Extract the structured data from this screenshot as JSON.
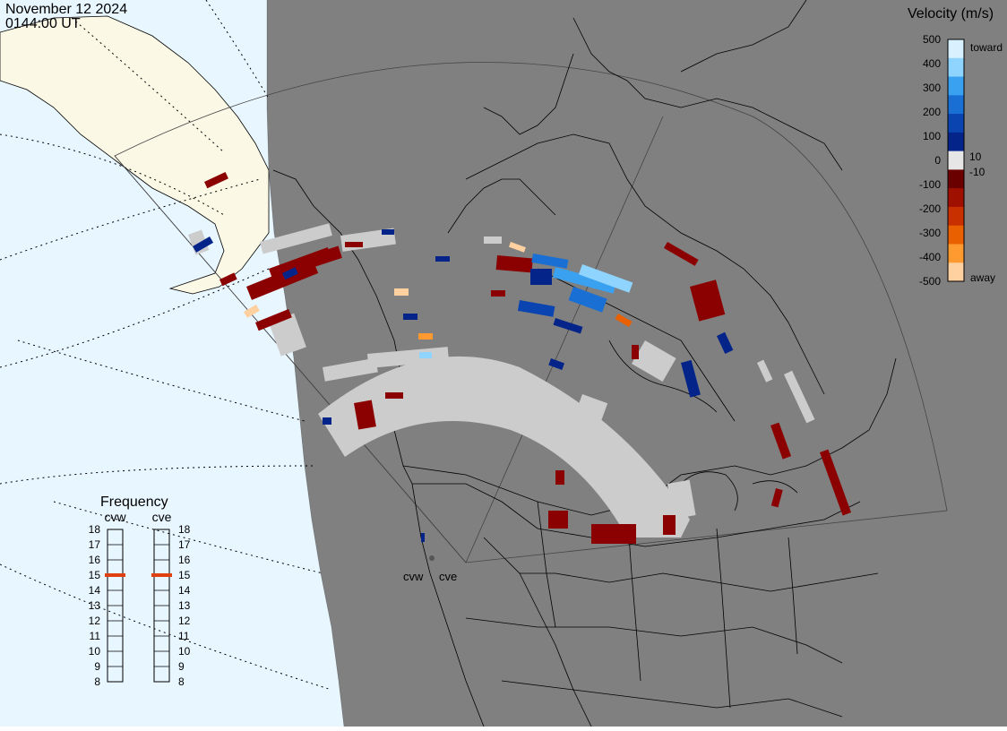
{
  "header": {
    "date": "November 12 2024",
    "time": "0144:00 UT"
  },
  "velocity_scale": {
    "title": "Velocity (m/s)",
    "ticks": [
      "500",
      "400",
      "300",
      "200",
      "100",
      "10",
      "0",
      "-10",
      "-100",
      "-200",
      "-300",
      "-400",
      "-500"
    ],
    "toward_label": "toward",
    "away_label": "away",
    "colors": [
      "#d9f0ff",
      "#8fd3ff",
      "#3aa0f0",
      "#1a6fd4",
      "#0a44b0",
      "#04248a",
      "#e6e6e6",
      "#6b0000",
      "#a01000",
      "#c83000",
      "#e86000",
      "#ff9a30",
      "#ffd0a0"
    ]
  },
  "frequency_panel": {
    "title": "Frequency",
    "radars": [
      {
        "name": "cvw",
        "frequency_mhz": 15
      },
      {
        "name": "cve",
        "frequency_mhz": 15
      }
    ],
    "scale": [
      "18",
      "17",
      "16",
      "15",
      "14",
      "13",
      "12",
      "11",
      "10",
      "9",
      "8"
    ],
    "range_mhz": [
      8,
      18
    ]
  },
  "map": {
    "radar_site_labels": [
      "cvw",
      "cve"
    ],
    "colors": {
      "ocean": "#e8f6ff",
      "land_day": "#fbf8e6",
      "night": "#808080",
      "ground_scatter": "#cccccc"
    }
  }
}
